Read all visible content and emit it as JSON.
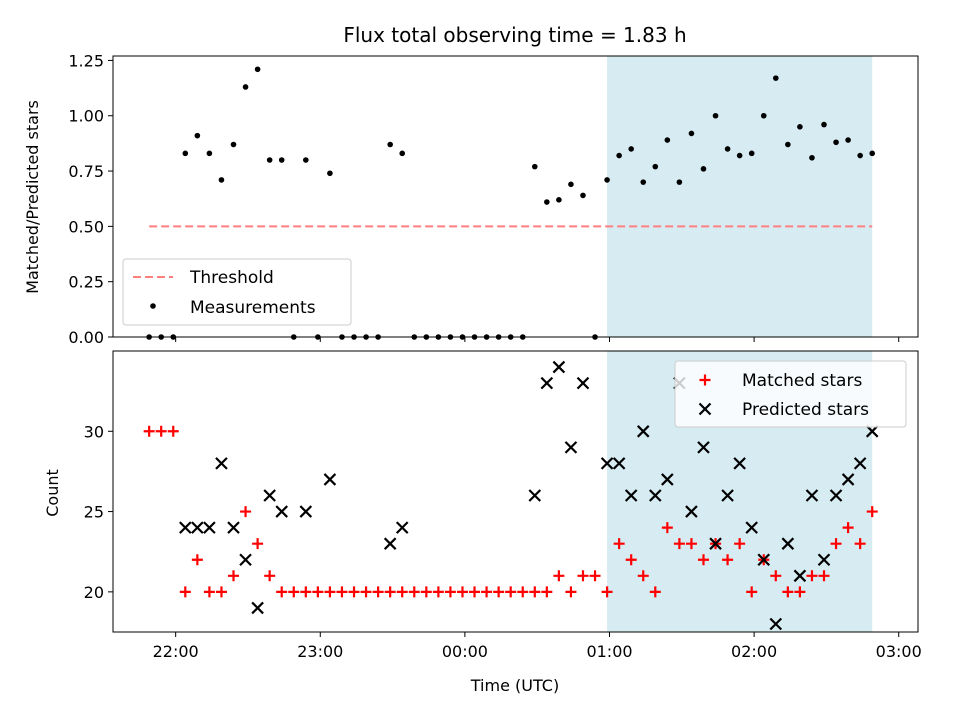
{
  "chart_data": [
    {
      "type": "scatter",
      "title": "Flux total observing time = 1.83 h",
      "xlabel": "",
      "ylabel": "Matched/Predicted stars",
      "xlim": [
        "21:34",
        "03:08"
      ],
      "ylim": [
        0,
        1.27
      ],
      "yticks": [
        {
          "value": 0.0,
          "label": "0.00"
        },
        {
          "value": 0.25,
          "label": "0.25"
        },
        {
          "value": 0.5,
          "label": "0.50"
        },
        {
          "value": 0.75,
          "label": "0.75"
        },
        {
          "value": 1.0,
          "label": "1.00"
        },
        {
          "value": 1.25,
          "label": "1.25"
        }
      ],
      "shaded_interval": {
        "start": "00:59",
        "end": "02:49",
        "color": "#add8e6"
      },
      "threshold": {
        "name": "Threshold",
        "value": 0.5,
        "x_start": "21:49",
        "x_end": "02:49",
        "color": "#ff7f7f",
        "style": "dashed"
      },
      "series": [
        {
          "name": "Measurements",
          "marker": "dot",
          "color": "#000000",
          "points": [
            {
              "x": "21:49",
              "y": 0
            },
            {
              "x": "21:54",
              "y": 0
            },
            {
              "x": "21:59",
              "y": 0
            },
            {
              "x": "22:04",
              "y": 0.83
            },
            {
              "x": "22:09",
              "y": 0.91
            },
            {
              "x": "22:14",
              "y": 0.83
            },
            {
              "x": "22:19",
              "y": 0.71
            },
            {
              "x": "22:24",
              "y": 0.87
            },
            {
              "x": "22:29",
              "y": 1.13
            },
            {
              "x": "22:34",
              "y": 1.21
            },
            {
              "x": "22:39",
              "y": 0.8
            },
            {
              "x": "22:44",
              "y": 0.8
            },
            {
              "x": "22:49",
              "y": 0
            },
            {
              "x": "22:54",
              "y": 0.8
            },
            {
              "x": "22:59",
              "y": 0
            },
            {
              "x": "23:04",
              "y": 0.74
            },
            {
              "x": "23:09",
              "y": 0
            },
            {
              "x": "23:14",
              "y": 0
            },
            {
              "x": "23:19",
              "y": 0
            },
            {
              "x": "23:24",
              "y": 0
            },
            {
              "x": "23:29",
              "y": 0.87
            },
            {
              "x": "23:34",
              "y": 0.83
            },
            {
              "x": "23:39",
              "y": 0
            },
            {
              "x": "23:44",
              "y": 0
            },
            {
              "x": "23:49",
              "y": 0
            },
            {
              "x": "23:54",
              "y": 0
            },
            {
              "x": "23:59",
              "y": 0
            },
            {
              "x": "00:04",
              "y": 0
            },
            {
              "x": "00:09",
              "y": 0
            },
            {
              "x": "00:14",
              "y": 0
            },
            {
              "x": "00:19",
              "y": 0
            },
            {
              "x": "00:24",
              "y": 0
            },
            {
              "x": "00:29",
              "y": 0.77
            },
            {
              "x": "00:34",
              "y": 0.61
            },
            {
              "x": "00:39",
              "y": 0.62
            },
            {
              "x": "00:44",
              "y": 0.69
            },
            {
              "x": "00:49",
              "y": 0.64
            },
            {
              "x": "00:54",
              "y": 0
            },
            {
              "x": "00:59",
              "y": 0.71
            },
            {
              "x": "01:04",
              "y": 0.82
            },
            {
              "x": "01:09",
              "y": 0.85
            },
            {
              "x": "01:14",
              "y": 0.7
            },
            {
              "x": "01:19",
              "y": 0.77
            },
            {
              "x": "01:24",
              "y": 0.89
            },
            {
              "x": "01:29",
              "y": 0.7
            },
            {
              "x": "01:34",
              "y": 0.92
            },
            {
              "x": "01:39",
              "y": 0.76
            },
            {
              "x": "01:44",
              "y": 1.0
            },
            {
              "x": "01:49",
              "y": 0.85
            },
            {
              "x": "01:54",
              "y": 0.82
            },
            {
              "x": "01:59",
              "y": 0.83
            },
            {
              "x": "02:04",
              "y": 1.0
            },
            {
              "x": "02:09",
              "y": 1.17
            },
            {
              "x": "02:14",
              "y": 0.87
            },
            {
              "x": "02:19",
              "y": 0.95
            },
            {
              "x": "02:24",
              "y": 0.81
            },
            {
              "x": "02:29",
              "y": 0.96
            },
            {
              "x": "02:34",
              "y": 0.88
            },
            {
              "x": "02:39",
              "y": 0.89
            },
            {
              "x": "02:44",
              "y": 0.82
            },
            {
              "x": "02:49",
              "y": 0.83
            }
          ]
        }
      ],
      "legend": {
        "placement": "lower-left",
        "entries": [
          "Threshold",
          "Measurements"
        ]
      }
    },
    {
      "type": "scatter",
      "title": "",
      "xlabel": "Time (UTC)",
      "ylabel": "Count",
      "xlim": [
        "21:34",
        "03:08"
      ],
      "ylim": [
        17.5,
        35
      ],
      "xticks": [
        "22:00",
        "23:00",
        "00:00",
        "01:00",
        "02:00",
        "03:00"
      ],
      "yticks": [
        {
          "value": 20,
          "label": "20"
        },
        {
          "value": 25,
          "label": "25"
        },
        {
          "value": 30,
          "label": "30"
        }
      ],
      "shaded_interval": {
        "start": "00:59",
        "end": "02:49",
        "color": "#add8e6"
      },
      "series": [
        {
          "name": "Matched stars",
          "marker": "plus",
          "color": "#ff0000",
          "points": [
            {
              "x": "21:49",
              "y": 30
            },
            {
              "x": "21:54",
              "y": 30
            },
            {
              "x": "21:59",
              "y": 30
            },
            {
              "x": "22:04",
              "y": 20
            },
            {
              "x": "22:09",
              "y": 22
            },
            {
              "x": "22:14",
              "y": 20
            },
            {
              "x": "22:19",
              "y": 20
            },
            {
              "x": "22:24",
              "y": 21
            },
            {
              "x": "22:29",
              "y": 25
            },
            {
              "x": "22:34",
              "y": 23
            },
            {
              "x": "22:39",
              "y": 21
            },
            {
              "x": "22:44",
              "y": 20
            },
            {
              "x": "22:49",
              "y": 20
            },
            {
              "x": "22:54",
              "y": 20
            },
            {
              "x": "22:59",
              "y": 20
            },
            {
              "x": "23:04",
              "y": 20
            },
            {
              "x": "23:09",
              "y": 20
            },
            {
              "x": "23:14",
              "y": 20
            },
            {
              "x": "23:19",
              "y": 20
            },
            {
              "x": "23:24",
              "y": 20
            },
            {
              "x": "23:29",
              "y": 20
            },
            {
              "x": "23:34",
              "y": 20
            },
            {
              "x": "23:39",
              "y": 20
            },
            {
              "x": "23:44",
              "y": 20
            },
            {
              "x": "23:49",
              "y": 20
            },
            {
              "x": "23:54",
              "y": 20
            },
            {
              "x": "23:59",
              "y": 20
            },
            {
              "x": "00:04",
              "y": 20
            },
            {
              "x": "00:09",
              "y": 20
            },
            {
              "x": "00:14",
              "y": 20
            },
            {
              "x": "00:19",
              "y": 20
            },
            {
              "x": "00:24",
              "y": 20
            },
            {
              "x": "00:29",
              "y": 20
            },
            {
              "x": "00:34",
              "y": 20
            },
            {
              "x": "00:39",
              "y": 21
            },
            {
              "x": "00:44",
              "y": 20
            },
            {
              "x": "00:49",
              "y": 21
            },
            {
              "x": "00:54",
              "y": 21
            },
            {
              "x": "00:59",
              "y": 20
            },
            {
              "x": "01:04",
              "y": 23
            },
            {
              "x": "01:09",
              "y": 22
            },
            {
              "x": "01:14",
              "y": 21
            },
            {
              "x": "01:19",
              "y": 20
            },
            {
              "x": "01:24",
              "y": 24
            },
            {
              "x": "01:29",
              "y": 23
            },
            {
              "x": "01:34",
              "y": 23
            },
            {
              "x": "01:39",
              "y": 22
            },
            {
              "x": "01:44",
              "y": 23
            },
            {
              "x": "01:49",
              "y": 22
            },
            {
              "x": "01:54",
              "y": 23
            },
            {
              "x": "01:59",
              "y": 20
            },
            {
              "x": "02:04",
              "y": 22
            },
            {
              "x": "02:09",
              "y": 21
            },
            {
              "x": "02:14",
              "y": 20
            },
            {
              "x": "02:19",
              "y": 20
            },
            {
              "x": "02:24",
              "y": 21
            },
            {
              "x": "02:29",
              "y": 21
            },
            {
              "x": "02:34",
              "y": 23
            },
            {
              "x": "02:39",
              "y": 24
            },
            {
              "x": "02:44",
              "y": 23
            },
            {
              "x": "02:49",
              "y": 25
            }
          ]
        },
        {
          "name": "Predicted stars",
          "marker": "x",
          "color": "#000000",
          "points": [
            {
              "x": "22:04",
              "y": 24
            },
            {
              "x": "22:09",
              "y": 24
            },
            {
              "x": "22:14",
              "y": 24
            },
            {
              "x": "22:19",
              "y": 28
            },
            {
              "x": "22:24",
              "y": 24
            },
            {
              "x": "22:29",
              "y": 22
            },
            {
              "x": "22:34",
              "y": 19
            },
            {
              "x": "22:39",
              "y": 26
            },
            {
              "x": "22:44",
              "y": 25
            },
            {
              "x": "22:54",
              "y": 25
            },
            {
              "x": "23:04",
              "y": 27
            },
            {
              "x": "23:29",
              "y": 23
            },
            {
              "x": "23:34",
              "y": 24
            },
            {
              "x": "00:29",
              "y": 26
            },
            {
              "x": "00:34",
              "y": 33
            },
            {
              "x": "00:39",
              "y": 34
            },
            {
              "x": "00:44",
              "y": 29
            },
            {
              "x": "00:49",
              "y": 33
            },
            {
              "x": "00:59",
              "y": 28
            },
            {
              "x": "01:04",
              "y": 28
            },
            {
              "x": "01:09",
              "y": 26
            },
            {
              "x": "01:14",
              "y": 30
            },
            {
              "x": "01:19",
              "y": 26
            },
            {
              "x": "01:24",
              "y": 27
            },
            {
              "x": "01:29",
              "y": 33
            },
            {
              "x": "01:34",
              "y": 25
            },
            {
              "x": "01:39",
              "y": 29
            },
            {
              "x": "01:44",
              "y": 23
            },
            {
              "x": "01:49",
              "y": 26
            },
            {
              "x": "01:54",
              "y": 28
            },
            {
              "x": "01:59",
              "y": 24
            },
            {
              "x": "02:04",
              "y": 22
            },
            {
              "x": "02:09",
              "y": 18
            },
            {
              "x": "02:14",
              "y": 23
            },
            {
              "x": "02:19",
              "y": 21
            },
            {
              "x": "02:24",
              "y": 26
            },
            {
              "x": "02:29",
              "y": 22
            },
            {
              "x": "02:34",
              "y": 26
            },
            {
              "x": "02:39",
              "y": 27
            },
            {
              "x": "02:44",
              "y": 28
            },
            {
              "x": "02:49",
              "y": 30
            }
          ]
        }
      ],
      "legend": {
        "placement": "upper-right",
        "entries": [
          "Matched stars",
          "Predicted stars"
        ]
      }
    }
  ]
}
